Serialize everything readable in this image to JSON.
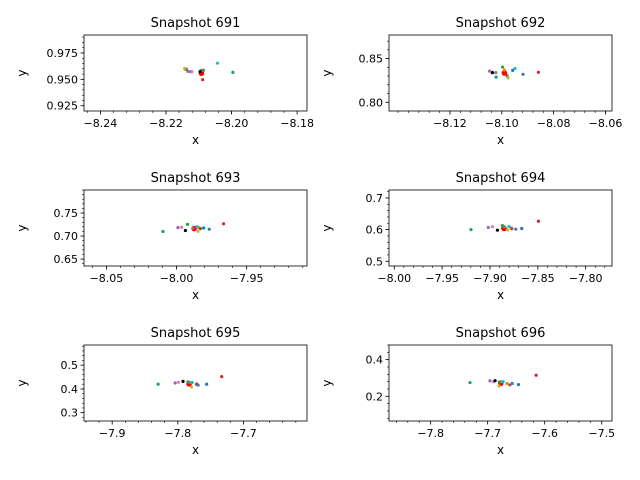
{
  "chart_data": [
    {
      "type": "scatter",
      "title": "Snapshot 691",
      "xlabel": "x",
      "ylabel": "y",
      "xlim": [
        -8.245,
        -8.177
      ],
      "ylim": [
        0.92,
        0.992
      ],
      "xticks": [
        -8.24,
        -8.22,
        -8.2,
        -8.18
      ],
      "xtick_labels": [
        "−8.24",
        "−8.22",
        "−8.20",
        "−8.18"
      ],
      "yticks": [
        0.925,
        0.95,
        0.975
      ],
      "ytick_labels": [
        "0.925",
        "0.950",
        "0.975"
      ],
      "grid": false,
      "series": [
        {
          "color": "#ff0000",
          "highlight": true,
          "points": [
            [
              -8.2092,
              0.9558
            ]
          ]
        },
        {
          "color": "#1f77b4",
          "points": [
            [
              -8.2124,
              0.9572
            ]
          ]
        },
        {
          "color": "#ff7f0e",
          "points": [
            [
              -8.2141,
              0.9595
            ]
          ]
        },
        {
          "color": "#2ca02c",
          "points": [
            [
              -8.2086,
              0.9586
            ]
          ]
        },
        {
          "color": "#d62728",
          "points": [
            [
              -8.2088,
              0.9497
            ]
          ]
        },
        {
          "color": "#9467bd",
          "points": [
            [
              -8.2133,
              0.9575
            ]
          ]
        },
        {
          "color": "#8c564b",
          "points": [
            [
              -8.2138,
              0.9597
            ]
          ]
        },
        {
          "color": "#e377c2",
          "points": [
            [
              -8.2121,
              0.9573
            ]
          ]
        },
        {
          "color": "#7f7f7f",
          "points": [
            [
              -8.2093,
              0.9585
            ]
          ]
        },
        {
          "color": "#bcbd22",
          "points": [
            [
              -8.2143,
              0.9603
            ]
          ]
        },
        {
          "color": "#17becf",
          "points": [
            [
              -8.2043,
              0.9653
            ]
          ]
        },
        {
          "color": "#1a9e77",
          "points": [
            [
              -8.1996,
              0.9566
            ]
          ]
        },
        {
          "color": "#000000",
          "points": [
            [
              -8.2096,
              0.9572
            ]
          ]
        }
      ]
    },
    {
      "type": "scatter",
      "title": "Snapshot 692",
      "xlabel": "x",
      "ylabel": "y",
      "xlim": [
        -8.1435,
        -8.0575
      ],
      "ylim": [
        0.79,
        0.877
      ],
      "xticks": [
        -8.12,
        -8.1,
        -8.08,
        -8.06
      ],
      "xtick_labels": [
        "−8.12",
        "−8.10",
        "−8.08",
        "−8.06"
      ],
      "yticks": [
        0.8,
        0.85
      ],
      "ytick_labels": [
        "0.80",
        "0.85"
      ],
      "grid": false,
      "series": [
        {
          "color": "#ff0000",
          "highlight": true,
          "points": [
            [
              -8.099,
              0.8335
            ]
          ]
        },
        {
          "color": "#1f77b4",
          "points": [
            [
              -8.0958,
              0.8365
            ]
          ]
        },
        {
          "color": "#ff7f0e",
          "points": [
            [
              -8.099,
              0.837
            ]
          ]
        },
        {
          "color": "#2ca02c",
          "points": [
            [
              -8.0997,
              0.8403
            ]
          ]
        },
        {
          "color": "#d62728",
          "points": [
            [
              -8.0859,
              0.8343
            ]
          ]
        },
        {
          "color": "#9467bd",
          "points": [
            [
              -8.1047,
              0.8357
            ]
          ]
        },
        {
          "color": "#8c564b",
          "points": [
            [
              -8.098,
              0.8305
            ]
          ]
        },
        {
          "color": "#e377c2",
          "points": [
            [
              -8.1039,
              0.8346
            ]
          ]
        },
        {
          "color": "#7f7f7f",
          "points": [
            [
              -8.1023,
              0.834
            ]
          ]
        },
        {
          "color": "#bcbd22",
          "points": [
            [
              -8.0976,
              0.8279
            ]
          ]
        },
        {
          "color": "#17becf",
          "points": [
            [
              -8.0949,
              0.8387
            ]
          ]
        },
        {
          "color": "#4c72b0",
          "points": [
            [
              -8.0918,
              0.832
            ]
          ]
        },
        {
          "color": "#1a9e77",
          "points": [
            [
              -8.1022,
              0.8288
            ]
          ]
        },
        {
          "color": "#000000",
          "points": [
            [
              -8.1036,
              0.8339
            ]
          ]
        }
      ]
    },
    {
      "type": "scatter",
      "title": "Snapshot 693",
      "xlabel": "x",
      "ylabel": "y",
      "xlim": [
        -8.066,
        -7.907
      ],
      "ylim": [
        0.635,
        0.8
      ],
      "xticks": [
        -8.05,
        -8.0,
        -7.95
      ],
      "xtick_labels": [
        "−8.05",
        "−8.00",
        "−7.95"
      ],
      "yticks": [
        0.65,
        0.7,
        0.75
      ],
      "ytick_labels": [
        "0.65",
        "0.70",
        "0.75"
      ],
      "grid": false,
      "series": [
        {
          "color": "#ff0000",
          "highlight": true,
          "points": [
            [
              -7.9875,
              0.7163
            ]
          ]
        },
        {
          "color": "#1f77b4",
          "points": [
            [
              -7.9807,
              0.7175
            ]
          ]
        },
        {
          "color": "#ff7f0e",
          "points": [
            [
              -7.9843,
              0.7186
            ]
          ]
        },
        {
          "color": "#2ca02c",
          "points": [
            [
              -7.9922,
              0.7255
            ]
          ]
        },
        {
          "color": "#d62728",
          "points": [
            [
              -7.9665,
              0.7266
            ]
          ]
        },
        {
          "color": "#9467bd",
          "points": [
            [
              -7.999,
              0.7183
            ]
          ]
        },
        {
          "color": "#8c564b",
          "points": [
            [
              -7.983,
              0.7161
            ]
          ]
        },
        {
          "color": "#e377c2",
          "points": [
            [
              -7.9963,
              0.7191
            ]
          ]
        },
        {
          "color": "#7f7f7f",
          "points": [
            [
              -7.9884,
              0.7171
            ]
          ]
        },
        {
          "color": "#bcbd22",
          "points": [
            [
              -7.9848,
              0.7104
            ]
          ]
        },
        {
          "color": "#17becf",
          "points": [
            [
              -7.9856,
              0.7203
            ]
          ]
        },
        {
          "color": "#4c72b0",
          "points": [
            [
              -7.9767,
              0.7149
            ]
          ]
        },
        {
          "color": "#1a9e77",
          "points": [
            [
              -8.0097,
              0.7099
            ]
          ]
        },
        {
          "color": "#000000",
          "points": [
            [
              -7.9937,
              0.712
            ]
          ]
        }
      ]
    },
    {
      "type": "scatter",
      "title": "Snapshot 694",
      "xlabel": "x",
      "ylabel": "y",
      "xlim": [
        -8.0055,
        -7.7725
      ],
      "ylim": [
        0.485,
        0.725
      ],
      "xticks": [
        -8.0,
        -7.95,
        -7.9,
        -7.85,
        -7.8
      ],
      "xtick_labels": [
        "−8.00",
        "−7.95",
        "−7.90",
        "−7.85",
        "−7.80"
      ],
      "yticks": [
        0.5,
        0.6,
        0.7
      ],
      "ytick_labels": [
        "0.5",
        "0.6",
        "0.7"
      ],
      "grid": false,
      "series": [
        {
          "color": "#ff0000",
          "highlight": true,
          "points": [
            [
              -7.8854,
              0.6035
            ]
          ]
        },
        {
          "color": "#1f77b4",
          "points": [
            [
              -7.8668,
              0.6035
            ]
          ]
        },
        {
          "color": "#ff7f0e",
          "points": [
            [
              -7.8778,
              0.605
            ]
          ]
        },
        {
          "color": "#2ca02c",
          "points": [
            [
              -7.887,
              0.6125
            ]
          ]
        },
        {
          "color": "#d62728",
          "points": [
            [
              -7.8494,
              0.6262
            ]
          ]
        },
        {
          "color": "#9467bd",
          "points": [
            [
              -7.9018,
              0.6065
            ]
          ]
        },
        {
          "color": "#8c564b",
          "points": [
            [
              -7.8772,
              0.6027
            ]
          ]
        },
        {
          "color": "#e377c2",
          "points": [
            [
              -7.8975,
              0.609
            ]
          ]
        },
        {
          "color": "#7f7f7f",
          "points": [
            [
              -7.8848,
              0.6085
            ]
          ]
        },
        {
          "color": "#bcbd22",
          "points": [
            [
              -7.8814,
              0.599
            ]
          ]
        },
        {
          "color": "#17becf",
          "points": [
            [
              -7.8802,
              0.6099
            ]
          ]
        },
        {
          "color": "#4c72b0",
          "points": [
            [
              -7.873,
              0.6013
            ]
          ]
        },
        {
          "color": "#1a9e77",
          "points": [
            [
              -7.9198,
              0.5999
            ]
          ]
        },
        {
          "color": "#000000",
          "points": [
            [
              -7.8922,
              0.5981
            ]
          ]
        }
      ]
    },
    {
      "type": "scatter",
      "title": "Snapshot 695",
      "xlabel": "x",
      "ylabel": "y",
      "xlim": [
        -7.943,
        -7.603
      ],
      "ylim": [
        0.265,
        0.585
      ],
      "xticks": [
        -7.9,
        -7.8,
        -7.7
      ],
      "xtick_labels": [
        "−7.9",
        "−7.8",
        "−7.7"
      ],
      "yticks": [
        0.3,
        0.4,
        0.5
      ],
      "ytick_labels": [
        "0.3",
        "0.4",
        "0.5"
      ],
      "grid": false,
      "series": [
        {
          "color": "#ff0000",
          "highlight": true,
          "points": [
            [
              -7.7828,
              0.421
            ]
          ]
        },
        {
          "color": "#1f77b4",
          "points": [
            [
              -7.756,
              0.42
            ]
          ]
        },
        {
          "color": "#ff7f0e",
          "points": [
            [
              -7.771,
              0.422
            ]
          ]
        },
        {
          "color": "#2ca02c",
          "points": [
            [
              -7.7845,
              0.43
            ]
          ]
        },
        {
          "color": "#d62728",
          "points": [
            [
              -7.733,
              0.452
            ]
          ]
        },
        {
          "color": "#9467bd",
          "points": [
            [
              -7.804,
              0.425
            ]
          ]
        },
        {
          "color": "#8c564b",
          "points": [
            [
              -7.7715,
              0.419
            ]
          ]
        },
        {
          "color": "#e377c2",
          "points": [
            [
              -7.799,
              0.428
            ]
          ]
        },
        {
          "color": "#7f7f7f",
          "points": [
            [
              -7.782,
              0.427
            ]
          ]
        },
        {
          "color": "#bcbd22",
          "points": [
            [
              -7.779,
              0.408
            ]
          ]
        },
        {
          "color": "#17becf",
          "points": [
            [
              -7.778,
              0.427
            ]
          ]
        },
        {
          "color": "#4c72b0",
          "points": [
            [
              -7.769,
              0.416
            ]
          ]
        },
        {
          "color": "#1a9e77",
          "points": [
            [
              -7.83,
              0.42
            ]
          ]
        },
        {
          "color": "#000000",
          "points": [
            [
              -7.792,
              0.432
            ]
          ]
        }
      ]
    },
    {
      "type": "scatter",
      "title": "Snapshot 696",
      "xlabel": "x",
      "ylabel": "y",
      "xlim": [
        -7.873,
        -7.482
      ],
      "ylim": [
        0.065,
        0.48
      ],
      "xticks": [
        -7.8,
        -7.7,
        -7.6,
        -7.5
      ],
      "xtick_labels": [
        "−7.8",
        "−7.7",
        "−7.6",
        "−7.5"
      ],
      "yticks": [
        0.2,
        0.4
      ],
      "ytick_labels": [
        "0.2",
        "0.4"
      ],
      "grid": false,
      "series": [
        {
          "color": "#ff0000",
          "highlight": true,
          "points": [
            [
              -7.677,
              0.2705
            ]
          ]
        },
        {
          "color": "#1f77b4",
          "points": [
            [
              -7.646,
              0.264
            ]
          ]
        },
        {
          "color": "#ff7f0e",
          "points": [
            [
              -7.666,
              0.27
            ]
          ]
        },
        {
          "color": "#2ca02c",
          "points": [
            [
              -7.6795,
              0.278
            ]
          ]
        },
        {
          "color": "#d62728",
          "points": [
            [
              -7.615,
              0.315
            ]
          ]
        },
        {
          "color": "#9467bd",
          "points": [
            [
              -7.696,
              0.284
            ]
          ]
        },
        {
          "color": "#8c564b",
          "points": [
            [
              -7.661,
              0.262
            ]
          ]
        },
        {
          "color": "#e377c2",
          "points": [
            [
              -7.69,
              0.279
            ]
          ]
        },
        {
          "color": "#7f7f7f",
          "points": [
            [
              -7.676,
              0.279
            ]
          ]
        },
        {
          "color": "#bcbd22",
          "points": [
            [
              -7.68,
              0.256
            ]
          ]
        },
        {
          "color": "#17becf",
          "points": [
            [
              -7.673,
              0.28
            ]
          ]
        },
        {
          "color": "#4c72b0",
          "points": [
            [
              -7.657,
              0.27
            ]
          ]
        },
        {
          "color": "#1a9e77",
          "points": [
            [
              -7.731,
              0.275
            ]
          ]
        },
        {
          "color": "#000000",
          "points": [
            [
              -7.687,
              0.285
            ]
          ]
        }
      ]
    }
  ]
}
